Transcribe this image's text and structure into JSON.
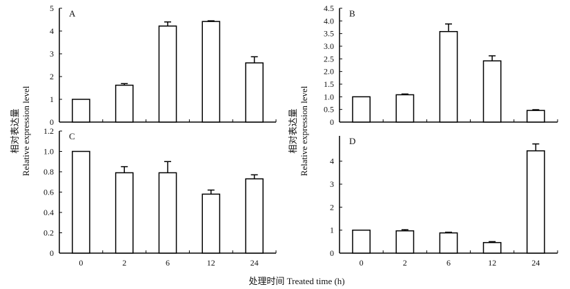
{
  "chart_data": [
    {
      "type": "bar",
      "panel": "A",
      "categories": [
        "0",
        "2",
        "6",
        "12",
        "24"
      ],
      "values": [
        1.0,
        1.62,
        4.22,
        4.42,
        2.6
      ],
      "errors": [
        0,
        0.07,
        0.18,
        0.03,
        0.27
      ],
      "ylim": [
        0,
        5
      ],
      "yticks": [
        0,
        1,
        2,
        3,
        4,
        5
      ],
      "ytick_labels": [
        "0",
        "1",
        "2",
        "3",
        "4",
        "5"
      ]
    },
    {
      "type": "bar",
      "panel": "B",
      "categories": [
        "0",
        "2",
        "6",
        "12",
        "24"
      ],
      "values": [
        1.0,
        1.08,
        3.58,
        2.42,
        0.46
      ],
      "errors": [
        0,
        0.03,
        0.3,
        0.2,
        0.03
      ],
      "ylim": [
        0,
        4.5
      ],
      "yticks": [
        0,
        0.5,
        1,
        1.5,
        2,
        2.5,
        3,
        3.5,
        4,
        4.5
      ],
      "ytick_labels": [
        "0",
        "0.5",
        "1.0",
        "1.5",
        "2.0",
        "2.5",
        "3.0",
        "3.5",
        "4.0",
        "4.5"
      ]
    },
    {
      "type": "bar",
      "panel": "C",
      "categories": [
        "0",
        "2",
        "6",
        "12",
        "24"
      ],
      "values": [
        1.0,
        0.79,
        0.79,
        0.58,
        0.73
      ],
      "errors": [
        0,
        0.06,
        0.11,
        0.04,
        0.04
      ],
      "ylim": [
        0,
        1.2
      ],
      "yticks": [
        0,
        0.2,
        0.4,
        0.6,
        0.8,
        1.0,
        1.2
      ],
      "ytick_labels": [
        "0",
        "0.2",
        "0.4",
        "0.6",
        "0.8",
        "1.0",
        "1.2"
      ]
    },
    {
      "type": "bar",
      "panel": "D",
      "categories": [
        "0",
        "2",
        "6",
        "12",
        "24"
      ],
      "values": [
        1.0,
        0.97,
        0.88,
        0.46,
        4.45
      ],
      "errors": [
        0,
        0.05,
        0.03,
        0.04,
        0.3
      ],
      "ylim": [
        0,
        5.1
      ],
      "yticks": [
        0,
        1,
        2,
        3,
        4
      ],
      "ytick_labels": [
        "0",
        "1",
        "2",
        "3",
        "4"
      ]
    }
  ],
  "ylabel_cn": "相对表达量",
  "ylabel_en": "Relative  expression level",
  "xlabel": "处理时间 Treated time (h)"
}
